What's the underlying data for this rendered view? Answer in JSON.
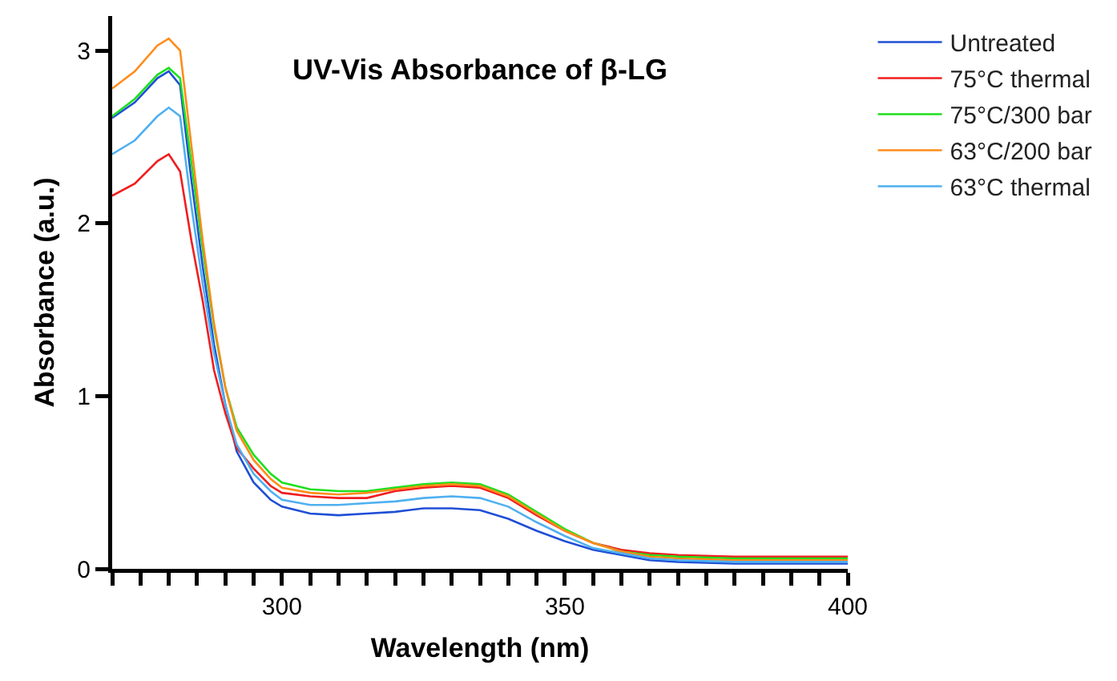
{
  "chart_data": {
    "type": "line",
    "title": "UV-Vis Absorbance of β-LG",
    "xlabel": "Wavelength (nm)",
    "ylabel": "Absorbance (a.u.)",
    "x": [
      270,
      274,
      278,
      280,
      282,
      284,
      286,
      288,
      290,
      292,
      295,
      298,
      300,
      305,
      310,
      315,
      320,
      325,
      330,
      335,
      340,
      345,
      350,
      355,
      360,
      365,
      370,
      380,
      390,
      400
    ],
    "series": [
      {
        "name": "Untreated",
        "color": "#1f4fd6",
        "values": [
          2.61,
          2.7,
          2.84,
          2.88,
          2.8,
          2.25,
          1.75,
          1.3,
          0.95,
          0.68,
          0.5,
          0.4,
          0.36,
          0.32,
          0.31,
          0.32,
          0.33,
          0.35,
          0.35,
          0.34,
          0.29,
          0.22,
          0.16,
          0.11,
          0.08,
          0.05,
          0.04,
          0.03,
          0.03,
          0.03
        ]
      },
      {
        "name": "75°C thermal",
        "color": "#f01e1e",
        "values": [
          2.16,
          2.23,
          2.36,
          2.4,
          2.3,
          1.9,
          1.55,
          1.15,
          0.9,
          0.7,
          0.58,
          0.48,
          0.44,
          0.42,
          0.41,
          0.41,
          0.45,
          0.47,
          0.48,
          0.47,
          0.41,
          0.31,
          0.22,
          0.15,
          0.11,
          0.09,
          0.08,
          0.07,
          0.07,
          0.07
        ]
      },
      {
        "name": "75°C/300 bar",
        "color": "#1ee01e",
        "values": [
          2.62,
          2.72,
          2.86,
          2.9,
          2.84,
          2.35,
          1.85,
          1.4,
          1.05,
          0.82,
          0.66,
          0.55,
          0.5,
          0.46,
          0.45,
          0.45,
          0.47,
          0.49,
          0.5,
          0.49,
          0.43,
          0.33,
          0.23,
          0.15,
          0.1,
          0.08,
          0.07,
          0.06,
          0.06,
          0.06
        ]
      },
      {
        "name": "63°C/200 bar",
        "color": "#ff8c1a",
        "values": [
          2.78,
          2.88,
          3.03,
          3.07,
          3.0,
          2.45,
          1.9,
          1.42,
          1.05,
          0.8,
          0.63,
          0.52,
          0.47,
          0.44,
          0.43,
          0.44,
          0.46,
          0.48,
          0.49,
          0.48,
          0.42,
          0.32,
          0.22,
          0.15,
          0.1,
          0.07,
          0.06,
          0.05,
          0.05,
          0.05
        ]
      },
      {
        "name": "63°C thermal",
        "color": "#4fb0f0",
        "values": [
          2.4,
          2.48,
          2.62,
          2.67,
          2.62,
          2.1,
          1.65,
          1.25,
          0.95,
          0.72,
          0.55,
          0.45,
          0.4,
          0.37,
          0.37,
          0.38,
          0.39,
          0.41,
          0.42,
          0.41,
          0.36,
          0.27,
          0.19,
          0.12,
          0.09,
          0.06,
          0.05,
          0.04,
          0.04,
          0.04
        ]
      }
    ],
    "xlim": [
      270,
      400
    ],
    "xticks": [
      {
        "value": 270,
        "label": null
      },
      {
        "value": 275,
        "label": null
      },
      {
        "value": 280,
        "label": null
      },
      {
        "value": 285,
        "label": null
      },
      {
        "value": 290,
        "label": null
      },
      {
        "value": 295,
        "label": null
      },
      300,
      {
        "value": 305,
        "label": null
      },
      {
        "value": 310,
        "label": null
      },
      {
        "value": 315,
        "label": null
      },
      {
        "value": 320,
        "label": null
      },
      {
        "value": 325,
        "label": null
      },
      {
        "value": 330,
        "label": null
      },
      {
        "value": 335,
        "label": null
      },
      {
        "value": 340,
        "label": null
      },
      {
        "value": 345,
        "label": null
      },
      350,
      {
        "value": 355,
        "label": null
      },
      {
        "value": 360,
        "label": null
      },
      {
        "value": 365,
        "label": null
      },
      {
        "value": 370,
        "label": null
      },
      {
        "value": 375,
        "label": null
      },
      {
        "value": 380,
        "label": null
      },
      {
        "value": 385,
        "label": null
      },
      {
        "value": 390,
        "label": null
      },
      {
        "value": 395,
        "label": null
      },
      400
    ],
    "ylim": [
      0,
      3.2
    ],
    "yticks": [
      0,
      1,
      2,
      3
    ],
    "grid": false,
    "legend": "right",
    "marker": "none",
    "line_style": "solid"
  }
}
